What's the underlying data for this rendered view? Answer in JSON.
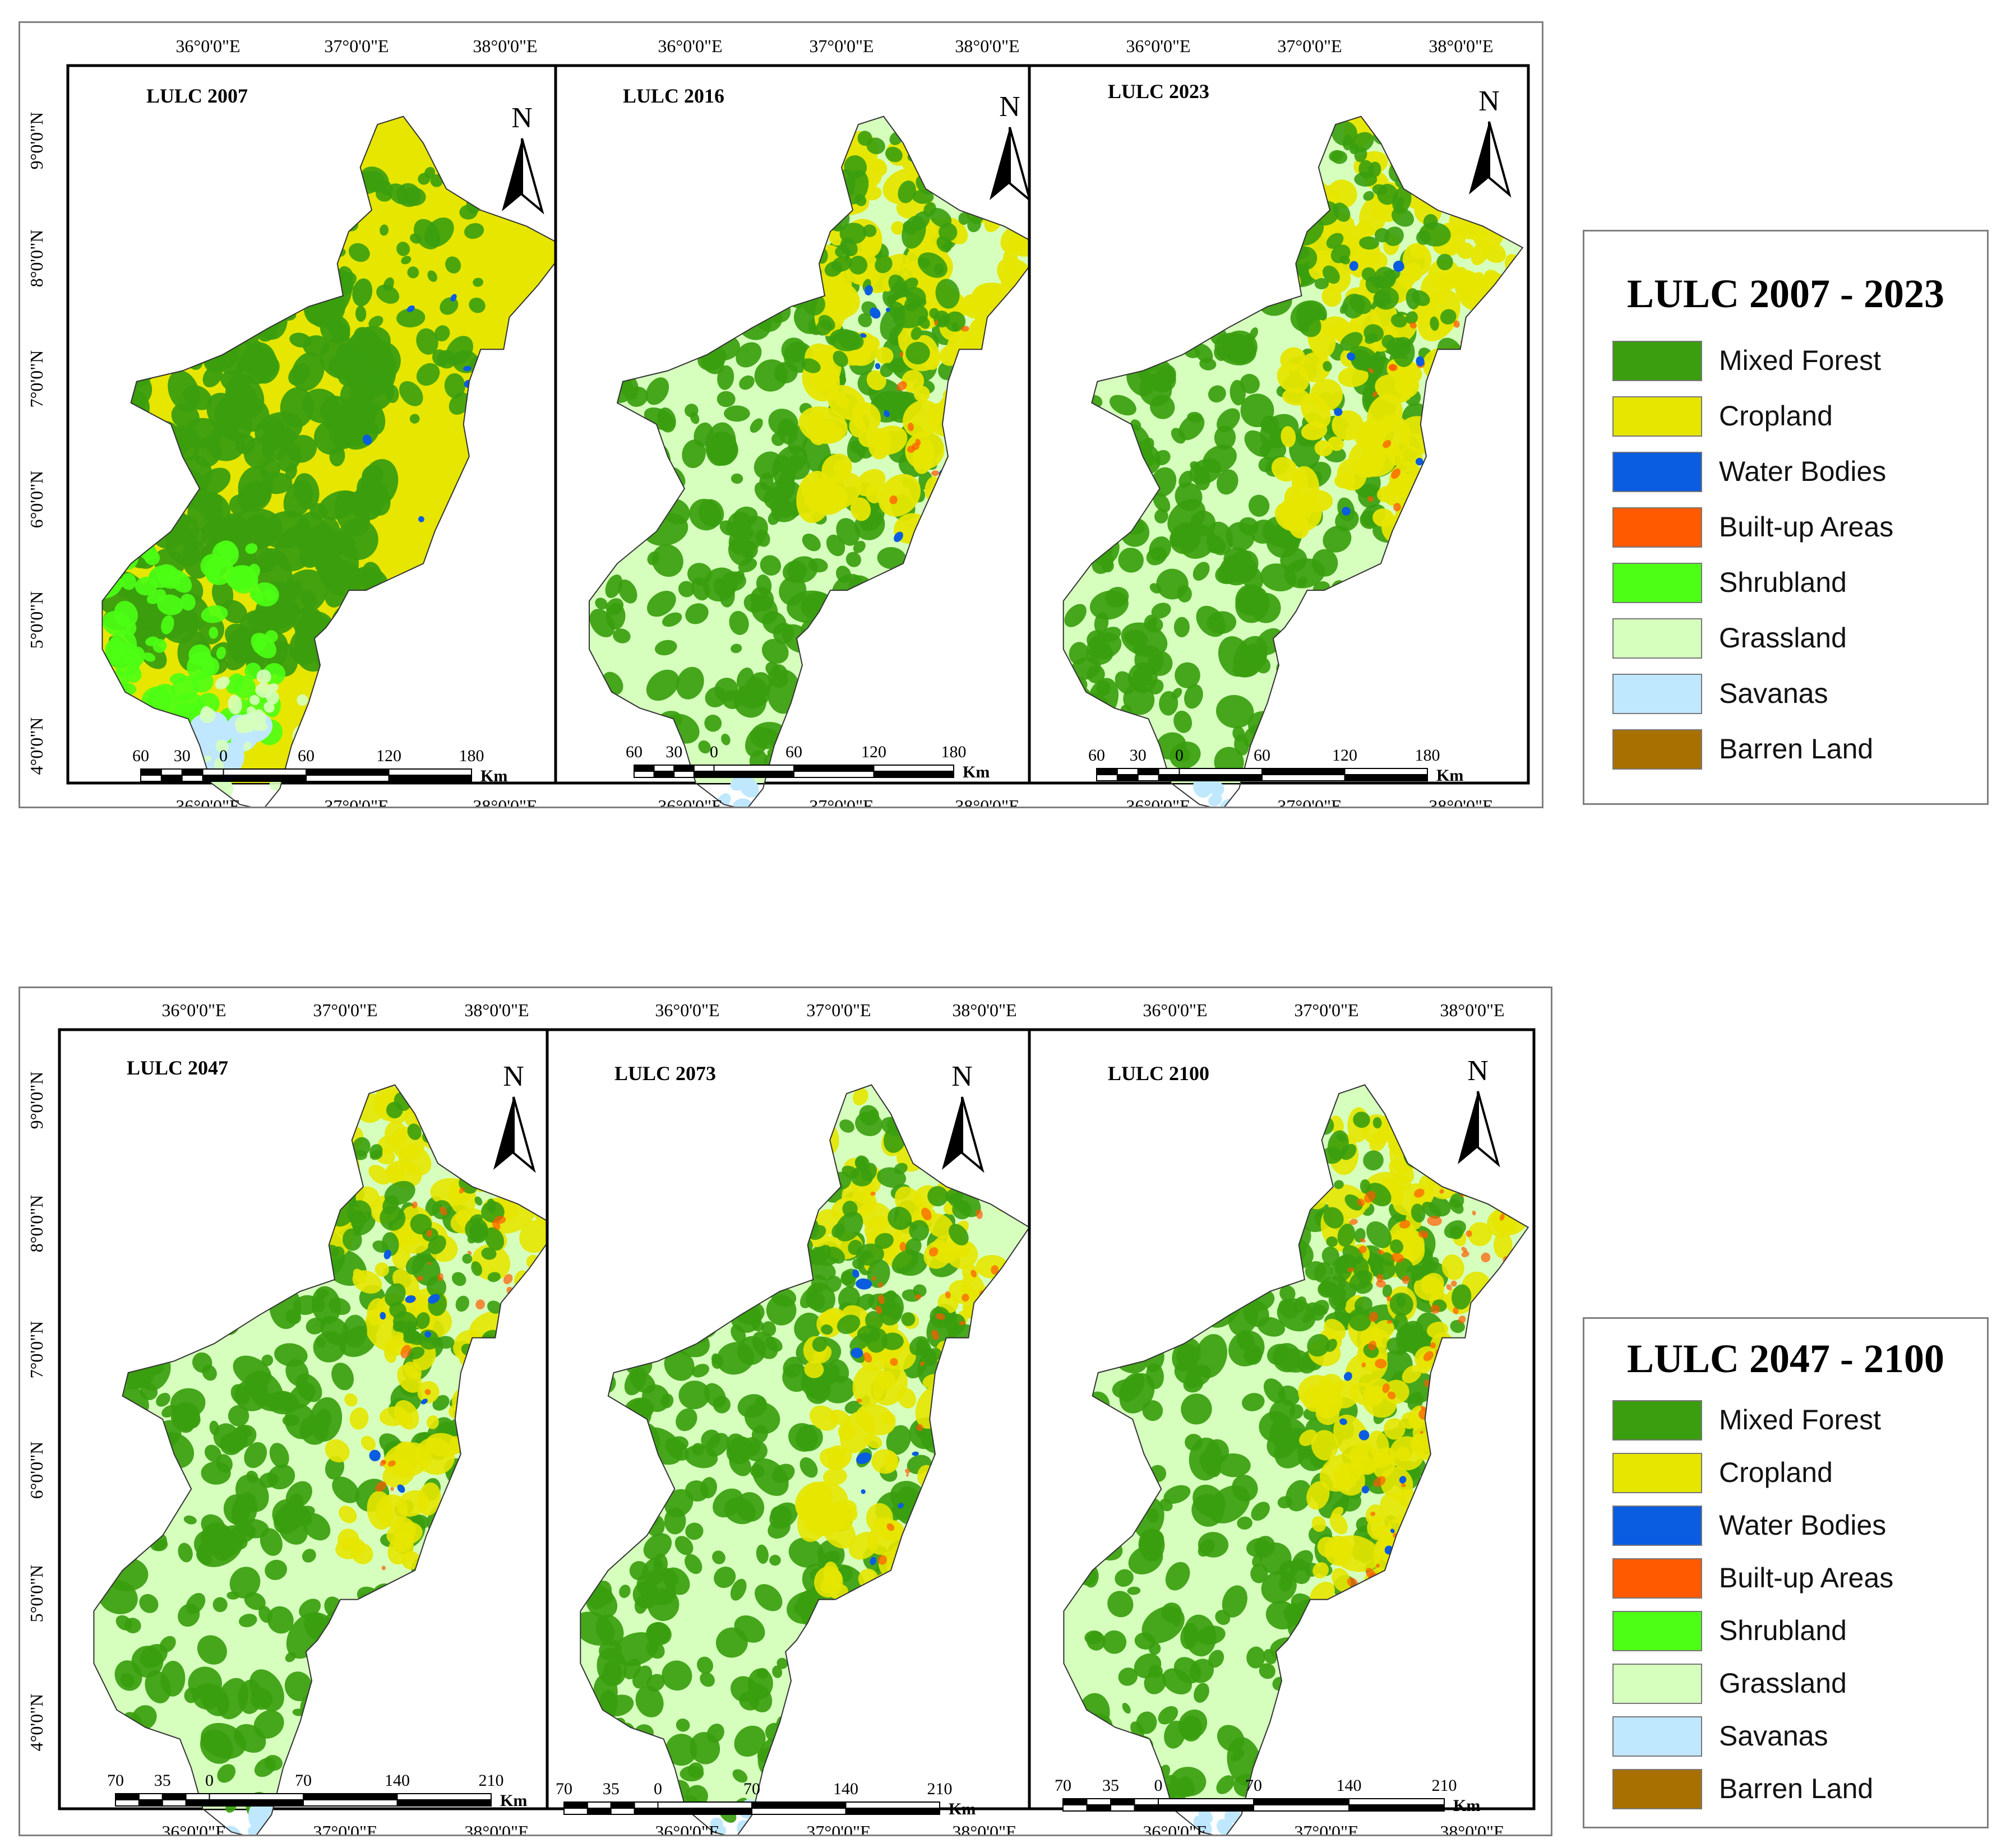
{
  "colors": {
    "mixed_forest": "#3a9e0e",
    "cropland": "#e6e600",
    "water_bodies": "#0a5ce0",
    "built_up_areas": "#ff5a00",
    "shrubland": "#4cff14",
    "grassland": "#d6ffbe",
    "savanas": "#bfe8ff",
    "barren_land": "#a87000"
  },
  "figures": [
    {
      "panels": [
        {
          "title": "LULC 2007",
          "scale_labels": [
            "60",
            "30",
            "0",
            "60",
            "120",
            "180"
          ],
          "scale_unit": "Km"
        },
        {
          "title": "LULC 2016",
          "scale_labels": [
            "60",
            "30",
            "0",
            "60",
            "120",
            "180"
          ],
          "scale_unit": "Km"
        },
        {
          "title": "LULC 2023",
          "scale_labels": [
            "60",
            "30",
            "0",
            "60",
            "120",
            "180"
          ],
          "scale_unit": "Km"
        }
      ],
      "lon_labels": [
        "36°0'0\"E",
        "37°0'0\"E",
        "38°0'0\"E"
      ],
      "lat_labels": [
        "9°0'0\"N",
        "8°0'0\"N",
        "7°0'0\"N",
        "6°0'0\"N",
        "5°0'0\"N",
        "4°0'0\"N"
      ],
      "north_label": "N"
    },
    {
      "panels": [
        {
          "title": "LULC 2047",
          "scale_labels": [
            "70",
            "35",
            "0",
            "70",
            "140",
            "210"
          ],
          "scale_unit": "Km"
        },
        {
          "title": "LULC 2073",
          "scale_labels": [
            "70",
            "35",
            "0",
            "70",
            "140",
            "210"
          ],
          "scale_unit": "Km"
        },
        {
          "title": "LULC 2100",
          "scale_labels": [
            "70",
            "35",
            "0",
            "70",
            "140",
            "210"
          ],
          "scale_unit": "Km"
        }
      ],
      "lon_labels": [
        "36°0'0\"E",
        "37°0'0\"E",
        "38°0'0\"E"
      ],
      "lat_labels": [
        "9°0'0\"N",
        "8°0'0\"N",
        "7°0'0\"N",
        "6°0'0\"N",
        "5°0'0\"N",
        "4°0'0\"N"
      ],
      "north_label": "N"
    }
  ],
  "legends": [
    {
      "title": "LULC 2007 - 2023",
      "items": [
        {
          "label": "Mixed Forest",
          "color": "#3a9e0e"
        },
        {
          "label": "Cropland",
          "color": "#e6e600"
        },
        {
          "label": "Water Bodies",
          "color": "#0a5ce0"
        },
        {
          "label": "Built-up Areas",
          "color": "#ff5a00"
        },
        {
          "label": "Shrubland",
          "color": "#4cff14"
        },
        {
          "label": "Grassland",
          "color": "#d6ffbe"
        },
        {
          "label": "Savanas",
          "color": "#bfe8ff"
        },
        {
          "label": "Barren Land",
          "color": "#a87000"
        }
      ]
    },
    {
      "title": "LULC 2047 - 2100",
      "items": [
        {
          "label": "Mixed Forest",
          "color": "#3a9e0e"
        },
        {
          "label": "Cropland",
          "color": "#e6e600"
        },
        {
          "label": "Water Bodies",
          "color": "#0a5ce0"
        },
        {
          "label": "Built-up Areas",
          "color": "#ff5a00"
        },
        {
          "label": "Shrubland",
          "color": "#4cff14"
        },
        {
          "label": "Grassland",
          "color": "#d6ffbe"
        },
        {
          "label": "Savanas",
          "color": "#bfe8ff"
        },
        {
          "label": "Barren Land",
          "color": "#a87000"
        }
      ]
    }
  ]
}
